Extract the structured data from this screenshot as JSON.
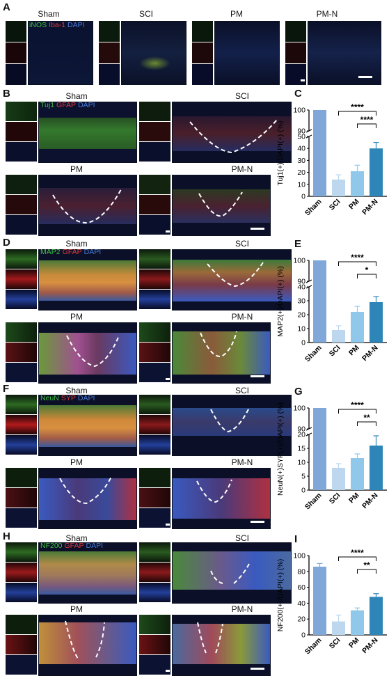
{
  "panels": {
    "A": {
      "label": "A",
      "groups": [
        "Sham",
        "SCI",
        "PM",
        "PM-N"
      ],
      "stain": [
        "iNOS",
        "Iba-1",
        "DAPI"
      ]
    },
    "B": {
      "label": "B",
      "groups": [
        "Sham",
        "SCI",
        "PM",
        "PM-N"
      ],
      "stain": [
        "Tuj1",
        "GFAP",
        "DAPI"
      ]
    },
    "D": {
      "label": "D",
      "groups": [
        "Sham",
        "SCI",
        "PM",
        "PM-N"
      ],
      "stain": [
        "MAP2",
        "GFAP",
        "DAPI"
      ]
    },
    "F": {
      "label": "F",
      "groups": [
        "Sham",
        "SCI",
        "PM",
        "PM-N"
      ],
      "stain": [
        "NeuN",
        "SYP",
        "DAPI"
      ]
    },
    "H": {
      "label": "H",
      "groups": [
        "Sham",
        "SCI",
        "PM",
        "PM-N"
      ],
      "stain": [
        "NF200",
        "GFAP",
        "DAPI"
      ]
    }
  },
  "stain_colors": {
    "green": "#3fbf3f",
    "red": "#e03a3a",
    "blue": "#4a7bd6"
  },
  "bar_colors": [
    "#7fa8d8",
    "#bcd7ee",
    "#8fc8ea",
    "#2e86b8"
  ],
  "chart_data": [
    {
      "panel": "C",
      "type": "bar",
      "categories": [
        "Sham",
        "SCI",
        "PM",
        "PM-N"
      ],
      "values": [
        100,
        14,
        21,
        40
      ],
      "errors": [
        0,
        4,
        5,
        5
      ],
      "ylabel": "Tuj1(+)/DAPI(+) (%)",
      "yticks_low": [
        "0",
        "10",
        "20",
        "30",
        "40",
        "50"
      ],
      "yticks_high": [
        "90",
        "100"
      ],
      "axis_break": [
        50,
        90
      ],
      "significance": [
        {
          "from": "SCI",
          "to": "PM-N",
          "label": "****"
        },
        {
          "from": "PM",
          "to": "PM-N",
          "label": "****"
        }
      ]
    },
    {
      "panel": "E",
      "type": "bar",
      "categories": [
        "Sham",
        "SCI",
        "PM",
        "PM-N"
      ],
      "values": [
        100,
        9,
        22,
        29
      ],
      "errors": [
        0,
        3,
        4,
        4
      ],
      "ylabel": "MAP2(+)/DAPI(+) (%)",
      "yticks_low": [
        "0",
        "10",
        "20",
        "30",
        "40"
      ],
      "yticks_high": [
        "90",
        "100"
      ],
      "axis_break": [
        40,
        90
      ],
      "significance": [
        {
          "from": "SCI",
          "to": "PM-N",
          "label": "****"
        },
        {
          "from": "PM",
          "to": "PM-N",
          "label": "*"
        }
      ]
    },
    {
      "panel": "G",
      "type": "bar",
      "categories": [
        "Sham",
        "SCI",
        "PM",
        "PM-N"
      ],
      "values": [
        100,
        8,
        11.5,
        16
      ],
      "errors": [
        0,
        1.5,
        1.5,
        3.5
      ],
      "ylabel": "NeuN(+)SYP(+)/DAPI(+) (%)",
      "yticks_low": [
        "0",
        "5",
        "10",
        "15",
        "20"
      ],
      "yticks_high": [
        "90",
        "100"
      ],
      "axis_break": [
        20,
        90
      ],
      "significance": [
        {
          "from": "SCI",
          "to": "PM-N",
          "label": "****"
        },
        {
          "from": "PM",
          "to": "PM-N",
          "label": "**"
        }
      ]
    },
    {
      "panel": "I",
      "type": "bar",
      "categories": [
        "Sham",
        "SCI",
        "PM",
        "PM-N"
      ],
      "values": [
        86,
        17,
        31,
        48
      ],
      "errors": [
        4,
        8,
        3,
        4
      ],
      "ylabel": "NF200(+)/DAPI(+) (%)",
      "yticks": [
        "0",
        "20",
        "40",
        "60",
        "80",
        "100"
      ],
      "ylim": [
        0,
        100
      ],
      "significance": [
        {
          "from": "SCI",
          "to": "PM-N",
          "label": "****"
        },
        {
          "from": "PM",
          "to": "PM-N",
          "label": "**"
        }
      ]
    }
  ]
}
